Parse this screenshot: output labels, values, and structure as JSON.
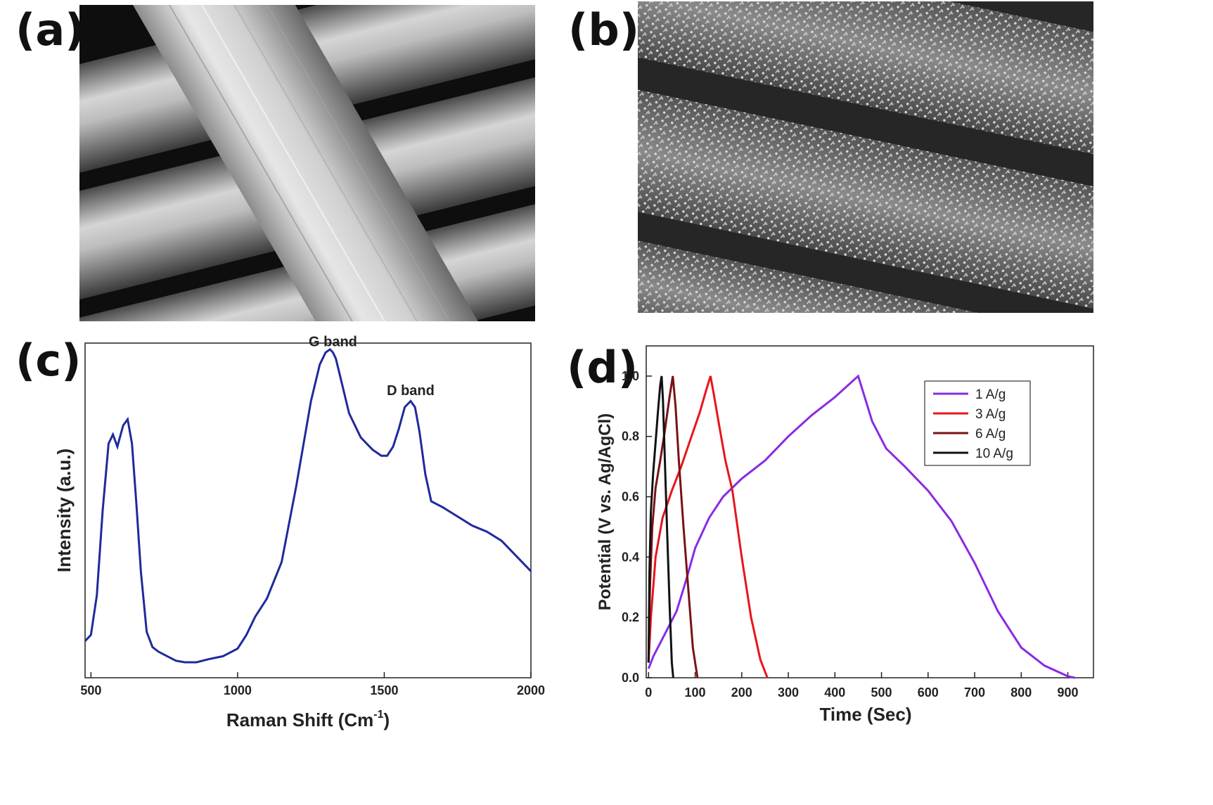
{
  "panels": {
    "a": {
      "label": "(a)"
    },
    "b": {
      "label": "(b)"
    },
    "c": {
      "label": "(c)"
    },
    "d": {
      "label": "(d)"
    }
  },
  "colors": {
    "raman_line": "#1f2a9c",
    "axis": "#222222",
    "series": {
      "1 A/g": "#8a2be2",
      "3 A/g": "#e8141c",
      "6 A/g": "#7a1116",
      "10 A/g": "#111111"
    }
  },
  "chart_data": [
    {
      "type": "line",
      "panel": "c",
      "xlabel": "Raman Shift (Cm",
      "xlabel_sup": "-1",
      "xlabel_close": ")",
      "ylabel": "Intensity (a.u.)",
      "xlim": [
        480,
        2000
      ],
      "ylim": [
        0,
        1
      ],
      "xticks": [
        500,
        1000,
        1500,
        2000
      ],
      "yticks": [],
      "annotations": [
        {
          "text": "G band",
          "x": 1325,
          "y": 1.04
        },
        {
          "text": "D band",
          "x": 1590,
          "y": 0.88
        }
      ],
      "series": [
        {
          "x": [
            480,
            500,
            520,
            540,
            560,
            575,
            590,
            610,
            625,
            640,
            655,
            670,
            690,
            710,
            730,
            760,
            790,
            820,
            860,
            900,
            950,
            1000,
            1030,
            1060,
            1100,
            1150,
            1200,
            1250,
            1280,
            1300,
            1315,
            1325,
            1335,
            1350,
            1380,
            1420,
            1460,
            1490,
            1510,
            1530,
            1550,
            1570,
            1590,
            1605,
            1620,
            1640,
            1660,
            1700,
            1750,
            1800,
            1850,
            1900,
            1950,
            2000
          ],
          "y": [
            0.07,
            0.09,
            0.22,
            0.5,
            0.72,
            0.75,
            0.71,
            0.78,
            0.8,
            0.72,
            0.52,
            0.3,
            0.1,
            0.05,
            0.035,
            0.02,
            0.005,
            0.0,
            0.0,
            0.01,
            0.02,
            0.045,
            0.09,
            0.15,
            0.21,
            0.33,
            0.58,
            0.86,
            0.98,
            1.02,
            1.03,
            1.02,
            1.0,
            0.94,
            0.82,
            0.74,
            0.7,
            0.68,
            0.68,
            0.71,
            0.77,
            0.84,
            0.86,
            0.84,
            0.76,
            0.62,
            0.53,
            0.51,
            0.48,
            0.45,
            0.43,
            0.4,
            0.35,
            0.3
          ]
        }
      ]
    },
    {
      "type": "line",
      "panel": "d",
      "xlabel": "Time (Sec)",
      "ylabel": "Potential (V vs. Ag/AgCl)",
      "xlim": [
        -5,
        955
      ],
      "ylim": [
        0.0,
        1.1
      ],
      "xticks": [
        0,
        100,
        200,
        300,
        400,
        500,
        600,
        700,
        800,
        900
      ],
      "yticks": [
        0.0,
        0.2,
        0.4,
        0.6,
        0.8,
        1.0
      ],
      "xtick_labels": [
        "0",
        "100",
        "200",
        "300",
        "400",
        "500",
        "600",
        "700",
        "800",
        "900"
      ],
      "ytick_labels": [
        "0.0",
        "0.2",
        "0.4",
        "0.6",
        "0.8",
        "1.0"
      ],
      "legend": {
        "position": "top-right"
      },
      "series": [
        {
          "name": "1 A/g",
          "x": [
            0,
            10,
            30,
            60,
            80,
            100,
            130,
            160,
            200,
            250,
            300,
            350,
            400,
            450,
            460,
            480,
            510,
            550,
            600,
            650,
            700,
            750,
            800,
            850,
            900,
            915
          ],
          "y": [
            0.03,
            0.07,
            0.13,
            0.22,
            0.32,
            0.43,
            0.53,
            0.6,
            0.66,
            0.72,
            0.8,
            0.87,
            0.93,
            1.0,
            0.95,
            0.85,
            0.76,
            0.7,
            0.62,
            0.52,
            0.38,
            0.22,
            0.1,
            0.04,
            0.005,
            0.0
          ],
          "color": "#8a2be2"
        },
        {
          "name": "3 A/g",
          "x": [
            0,
            5,
            15,
            30,
            50,
            70,
            90,
            110,
            125,
            133,
            140,
            150,
            165,
            180,
            200,
            220,
            240,
            255
          ],
          "y": [
            0.05,
            0.2,
            0.4,
            0.53,
            0.62,
            0.7,
            0.79,
            0.88,
            0.96,
            1.0,
            0.94,
            0.85,
            0.72,
            0.62,
            0.4,
            0.2,
            0.06,
            0.0
          ],
          "color": "#e8141c"
        },
        {
          "name": "6 A/g",
          "x": [
            0,
            3,
            8,
            15,
            25,
            35,
            45,
            52,
            58,
            65,
            75,
            85,
            95,
            105
          ],
          "y": [
            0.05,
            0.3,
            0.5,
            0.63,
            0.72,
            0.82,
            0.93,
            1.0,
            0.9,
            0.72,
            0.5,
            0.3,
            0.1,
            0.0
          ],
          "color": "#7a1116"
        },
        {
          "name": "10 A/g",
          "x": [
            0,
            2,
            5,
            10,
            15,
            20,
            25,
            28,
            31,
            35,
            40,
            45,
            50,
            53
          ],
          "y": [
            0.05,
            0.35,
            0.55,
            0.68,
            0.78,
            0.88,
            0.97,
            1.0,
            0.92,
            0.72,
            0.48,
            0.25,
            0.05,
            0.0
          ],
          "color": "#111111"
        }
      ]
    }
  ]
}
